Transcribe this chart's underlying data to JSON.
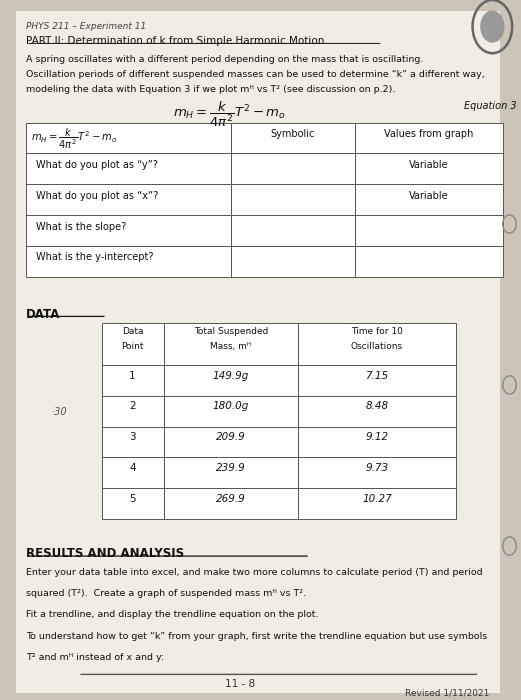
{
  "bg_color": "#ccc5b5",
  "paper_color": "#f2ede4",
  "header": "PHYS 211 – Experiment 11",
  "part_title": "PART II: Determination of k from Simple Harmonic Motion",
  "intro_line1": "A spring oscillates with a different period depending on the mass that is oscillating.",
  "intro_line2": "Oscillation periods of different suspended masses can be used to determine “k” a different way,",
  "intro_line3": "modeling the data with Equation 3 if we plot mᴴ vs T² (see discussion on p.2).",
  "equation_label": "Equation 3",
  "table1_col1": [
    "EQUATION_CELL",
    "What do you plot as “y”?",
    "What do you plot as “x”?",
    "What is the slope?",
    "What is the y-intercept?"
  ],
  "table1_col2": [
    "Symbolic",
    "",
    "",
    "",
    ""
  ],
  "table1_col3": [
    "Values from graph",
    "Variable",
    "Variable",
    "",
    ""
  ],
  "data_section": "DATA",
  "data_table_headers": [
    "Data\nPoint",
    "Total Suspended\nMass, mᴴ",
    "Time for 10\nOscillations"
  ],
  "data_rows": [
    [
      "1",
      "149.9g",
      "7.15"
    ],
    [
      "2",
      "180.0g",
      "8.48"
    ],
    [
      "3",
      "209.9",
      "9.12"
    ],
    [
      "4",
      "239.9",
      "9.73"
    ],
    [
      "5",
      "269.9",
      "10.27"
    ]
  ],
  "side_note": "·30",
  "results_title": "RESULTS AND ANALYSIS",
  "results_text1_l1": "Enter your data table into excel, and make two more columns to calculate period (T) and period",
  "results_text1_l2": "squared (T²).  Create a graph of suspended mass mᴴ vs T².",
  "results_text1_l3": "Fit a trendline, and display the trendline equation on the plot.",
  "results_text2_l1": "To understand how to get “k” from your graph, first write the trendline equation but use symbols",
  "results_text2_l2": "T² and mᴴ instead of x and y:",
  "page_num": "11 - 8",
  "revised": "Revised 1/11/2021"
}
